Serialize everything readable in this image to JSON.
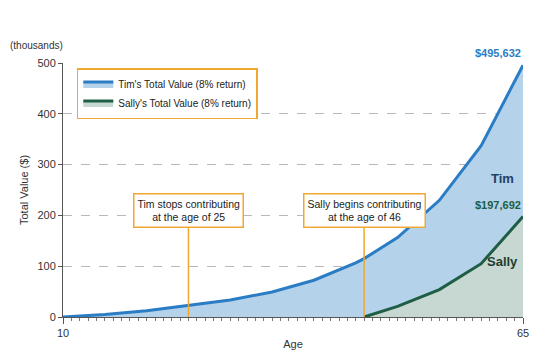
{
  "chart_data": {
    "type": "area",
    "x": [
      10,
      15,
      20,
      25,
      30,
      35,
      40,
      45,
      46,
      50,
      55,
      60,
      65
    ],
    "series": [
      {
        "name": "Tim's Total Value (8% return)",
        "label": "Tim",
        "color": "#2a7dc4",
        "values": [
          0,
          4.9,
          12.2,
          22.8,
          33.5,
          49.3,
          72.4,
          106.4,
          114.9,
          156.3,
          229.7,
          337.3,
          495.632
        ],
        "value_labels": [
          null,
          null,
          null,
          null,
          null,
          null,
          null,
          null,
          null,
          null,
          null,
          null,
          "$495,632"
        ]
      },
      {
        "name": "Sally's Total Value (8% return)",
        "label": "Sally",
        "color": "#1d5e45",
        "values": [
          null,
          null,
          null,
          null,
          null,
          null,
          null,
          null,
          0,
          21,
          54,
          105,
          197.692
        ],
        "value_labels": [
          null,
          null,
          null,
          null,
          null,
          null,
          null,
          null,
          null,
          null,
          null,
          null,
          "$197,692"
        ]
      }
    ],
    "xlim": [
      10,
      65
    ],
    "ylim": [
      0,
      500
    ],
    "xticks": [
      10,
      65
    ],
    "yticks": [
      0,
      100,
      200,
      300,
      400,
      500
    ],
    "grid": true,
    "legend": "upper left",
    "x_label": "Age",
    "y_label": "Total Value ($)",
    "y_unit_label": "(thousands)",
    "annotations": [
      {
        "x": 25,
        "text": "Tim stops contributing\nat the age of 25"
      },
      {
        "x": 46,
        "text": "Sally begins contributing\nat the age of 46"
      }
    ]
  }
}
